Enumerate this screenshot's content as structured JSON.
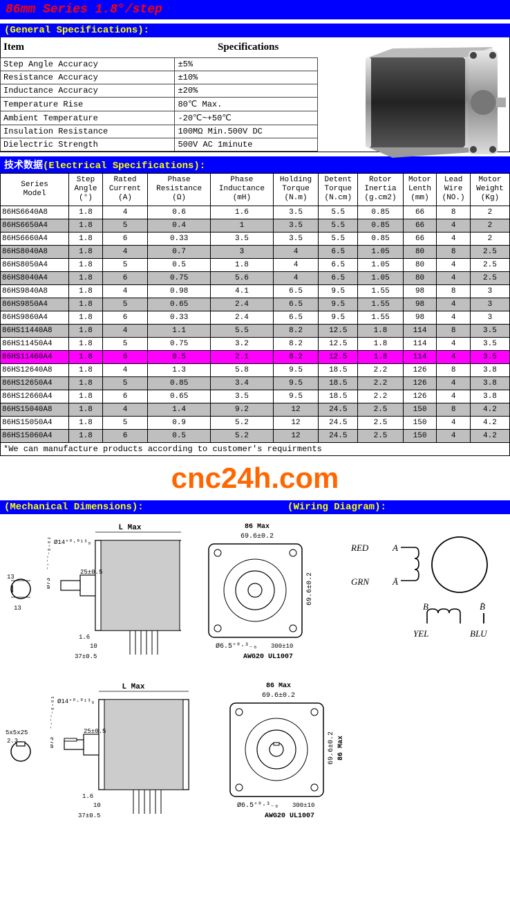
{
  "header": {
    "title": "86mm Series 1.8°/step"
  },
  "sections": {
    "general": {
      "title": "(General Specifications):"
    },
    "electrical": {
      "title_cn": "技术数据",
      "title_en": "(Electrical Specifications):"
    },
    "mechanical": {
      "title": "(Mechanical Dimensions):",
      "wiring": "(Wiring Diagram):"
    }
  },
  "gen_head": {
    "item": "Item",
    "spec": "Specifications"
  },
  "general_specs": [
    {
      "item": "Step Angle Accuracy",
      "value": "±5%"
    },
    {
      "item": "Resistance Accuracy",
      "value": "±10%"
    },
    {
      "item": "Inductance Accuracy",
      "value": "±20%"
    },
    {
      "item": "Temperature Rise",
      "value": "80℃ Max."
    },
    {
      "item": "Ambient Temperature",
      "value": "-20℃~+50℃"
    },
    {
      "item": "Insulation Resistance",
      "value": "100MΩ Min.500V DC"
    },
    {
      "item": "Dielectric Strength",
      "value": "500V AC 1minute"
    }
  ],
  "spec_columns": [
    "Series\nModel",
    "Step\nAngle\n(°)",
    "Rated\nCurrent\n(A)",
    "Phase\nResistance\n(Ω)",
    "Phase\nInductance\n(mH)",
    "Holding\nTorque\n(N.m)",
    "Detent\nTorque\n(N.cm)",
    "Rotor\nInertia\n(g.cm2)",
    "Motor\nLenth\n(mm)",
    "Lead\nWire\n(NO.)",
    "Motor\nWeight\n(Kg)"
  ],
  "spec_rows": [
    {
      "cls": "row-white",
      "c": [
        "86HS6640A8",
        "1.8",
        "4",
        "0.6",
        "1.6",
        "3.5",
        "5.5",
        "0.85",
        "66",
        "8",
        "2"
      ]
    },
    {
      "cls": "row-gray",
      "c": [
        "86HS6650A4",
        "1.8",
        "5",
        "0.4",
        "1",
        "3.5",
        "5.5",
        "0.85",
        "66",
        "4",
        "2"
      ]
    },
    {
      "cls": "row-white",
      "c": [
        "86HS6660A4",
        "1.8",
        "6",
        "0.33",
        "3.5",
        "3.5",
        "5.5",
        "0.85",
        "66",
        "4",
        "2"
      ]
    },
    {
      "cls": "row-gray",
      "c": [
        "86HS8040A8",
        "1.8",
        "4",
        "0.7",
        "3",
        "4",
        "6.5",
        "1.05",
        "80",
        "8",
        "2.5"
      ]
    },
    {
      "cls": "row-white",
      "c": [
        "86HS8050A4",
        "1.8",
        "5",
        "0.5",
        "1.8",
        "4",
        "6.5",
        "1.05",
        "80",
        "4",
        "2.5"
      ]
    },
    {
      "cls": "row-gray",
      "c": [
        "86HS8040A4",
        "1.8",
        "6",
        "0.75",
        "5.6",
        "4",
        "6.5",
        "1.05",
        "80",
        "4",
        "2.5"
      ]
    },
    {
      "cls": "row-white",
      "c": [
        "86HS9840A8",
        "1.8",
        "4",
        "0.98",
        "4.1",
        "6.5",
        "9.5",
        "1.55",
        "98",
        "8",
        "3"
      ]
    },
    {
      "cls": "row-gray",
      "c": [
        "86HS9850A4",
        "1.8",
        "5",
        "0.65",
        "2.4",
        "6.5",
        "9.5",
        "1.55",
        "98",
        "4",
        "3"
      ]
    },
    {
      "cls": "row-white",
      "c": [
        "86HS9860A4",
        "1.8",
        "6",
        "0.33",
        "2.4",
        "6.5",
        "9.5",
        "1.55",
        "98",
        "4",
        "3"
      ]
    },
    {
      "cls": "row-gray",
      "c": [
        "86HS11440A8",
        "1.8",
        "4",
        "1.1",
        "5.5",
        "8.2",
        "12.5",
        "1.8",
        "114",
        "8",
        "3.5"
      ]
    },
    {
      "cls": "row-white",
      "c": [
        "86HS11450A4",
        "1.8",
        "5",
        "0.75",
        "3.2",
        "8.2",
        "12.5",
        "1.8",
        "114",
        "4",
        "3.5"
      ]
    },
    {
      "cls": "row-pink",
      "c": [
        "86HS11460A4",
        "1.8",
        "6",
        "0.5",
        "2.1",
        "8.2",
        "12.5",
        "1.8",
        "114",
        "4",
        "3.5"
      ]
    },
    {
      "cls": "row-white",
      "c": [
        "86HS12640A8",
        "1.8",
        "4",
        "1.3",
        "5.8",
        "9.5",
        "18.5",
        "2.2",
        "126",
        "8",
        "3.8"
      ]
    },
    {
      "cls": "row-gray",
      "c": [
        "86HS12650A4",
        "1.8",
        "5",
        "0.85",
        "3.4",
        "9.5",
        "18.5",
        "2.2",
        "126",
        "4",
        "3.8"
      ]
    },
    {
      "cls": "row-white",
      "c": [
        "86HS12660A4",
        "1.8",
        "6",
        "0.65",
        "3.5",
        "9.5",
        "18.5",
        "2.2",
        "126",
        "4",
        "3.8"
      ]
    },
    {
      "cls": "row-gray",
      "c": [
        "86HS15040A8",
        "1.8",
        "4",
        "1.4",
        "9.2",
        "12",
        "24.5",
        "2.5",
        "150",
        "8",
        "4.2"
      ]
    },
    {
      "cls": "row-white",
      "c": [
        "86HS15050A4",
        "1.8",
        "5",
        "0.9",
        "5.2",
        "12",
        "24.5",
        "2.5",
        "150",
        "4",
        "4.2"
      ]
    },
    {
      "cls": "row-gray",
      "c": [
        "86HS15060A4",
        "1.8",
        "6",
        "0.5",
        "5.2",
        "12",
        "24.5",
        "2.5",
        "150",
        "4",
        "4.2"
      ]
    }
  ],
  "footnote": "*We can manufacture products according to customer's requirments",
  "watermark": "cnc24h.com",
  "diagram_labels": {
    "d14": "Ø14⁺⁰·⁰¹³₀",
    "d73": "Ø73 ⁻⁰·⁰⁵₋₀.₀₃",
    "lmax": "L Max",
    "d65": "Ø6.5⁺⁰·³₋₀",
    "awg": "AWG20 UL1007",
    "b300": "300±10",
    "b86": "86 Max",
    "b696": "69.6±0.2",
    "r86": "86 Max",
    "r696": "69.6±0.2",
    "a25": "25±0.5",
    "a16": "1.6",
    "a10": "10",
    "a37": "37±0.5",
    "s13": "13",
    "s13b": "13",
    "s5": "5x5x25",
    "s23": "2.3"
  },
  "wiring": {
    "red": "RED",
    "grn": "GRN",
    "yel": "YEL",
    "blu": "BLU",
    "a": "A",
    "abar": "Ā",
    "b": "B",
    "bbar": "B̄"
  },
  "colors": {
    "header_bg": "#0000ff",
    "header_fg": "#ff0000",
    "section_fg": "#ffff00",
    "gray_row": "#bfbfbf",
    "pink_row": "#ff00ff",
    "watermark": "#ff6600"
  }
}
